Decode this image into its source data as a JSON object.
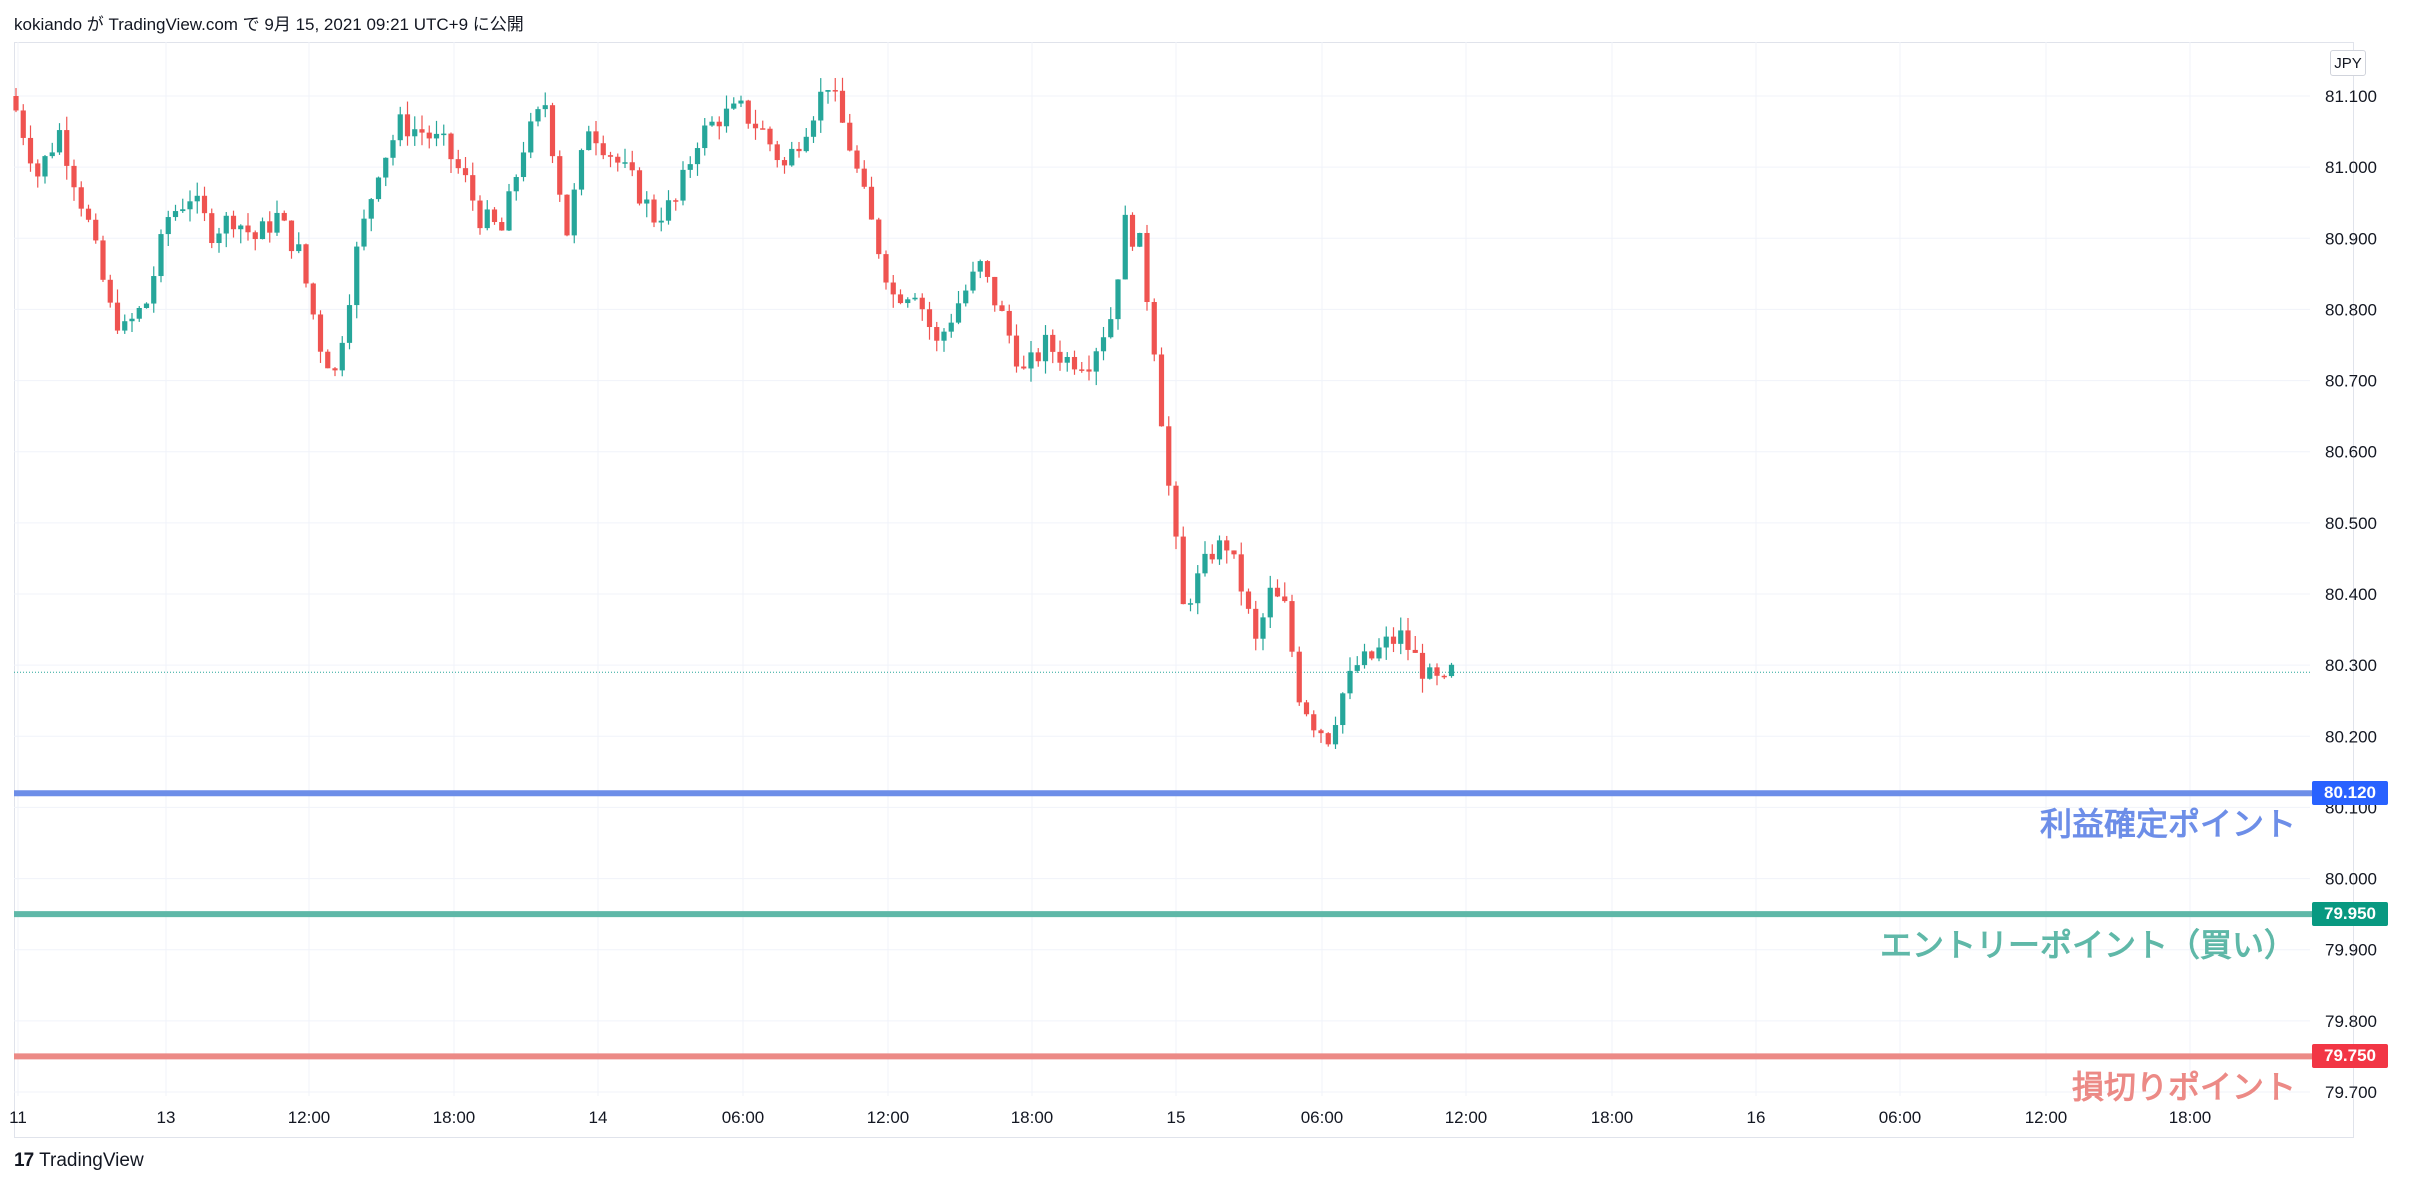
{
  "header": {
    "text": "kokiando が TradingView.com で 9月 15, 2021 09:21 UTC+9 に公開"
  },
  "currency_label": "JPY",
  "footer": {
    "brand": "TradingView",
    "logo_mark": "17"
  },
  "colors": {
    "up": "#26a69a",
    "down": "#ef5350",
    "take_profit": "#6d8ee8",
    "entry": "#5fb8a8",
    "stop_loss": "#ec8a86",
    "tag_take_profit": "#2962ff",
    "tag_entry": "#089981",
    "tag_stop_loss": "#f23645",
    "grid": "#f0f3fa",
    "axis_text": "#131722"
  },
  "chart_data": {
    "type": "candlestick",
    "symbol_currency": "JPY",
    "ylim": [
      79.7,
      81.16
    ],
    "y_ticks": [
      "81.100",
      "81.000",
      "80.900",
      "80.800",
      "80.700",
      "80.600",
      "80.500",
      "80.400",
      "80.300",
      "80.200",
      "80.100",
      "80.000",
      "79.900",
      "79.800",
      "79.700"
    ],
    "x_ticks": [
      "11",
      "13",
      "12:00",
      "18:00",
      "14",
      "06:00",
      "12:00",
      "18:00",
      "15",
      "06:00",
      "12:00",
      "18:00",
      "16",
      "06:00",
      "12:00",
      "18:00"
    ],
    "current_price": 80.29,
    "horizontal_lines": [
      {
        "name": "take_profit",
        "price": "80.120",
        "label": "利益確定ポイント"
      },
      {
        "name": "entry",
        "price": "79.950",
        "label": "エントリーポイント（買い）"
      },
      {
        "name": "stop_loss",
        "price": "79.750",
        "label": "損切りポイント"
      }
    ],
    "close_path": [
      [
        0,
        81.08
      ],
      [
        3,
        80.99
      ],
      [
        6,
        81.05
      ],
      [
        10,
        80.92
      ],
      [
        13,
        80.8
      ],
      [
        15,
        80.77
      ],
      [
        18,
        80.81
      ],
      [
        21,
        80.93
      ],
      [
        24,
        80.96
      ],
      [
        27,
        80.91
      ],
      [
        30,
        80.93
      ],
      [
        33,
        80.9
      ],
      [
        36,
        80.93
      ],
      [
        39,
        80.88
      ],
      [
        42,
        80.75
      ],
      [
        44,
        80.71
      ],
      [
        47,
        80.88
      ],
      [
        50,
        81.0
      ],
      [
        53,
        81.06
      ],
      [
        56,
        81.05
      ],
      [
        59,
        81.03
      ],
      [
        62,
        80.98
      ],
      [
        64,
        80.93
      ],
      [
        67,
        80.91
      ],
      [
        70,
        81.03
      ],
      [
        73,
        81.09
      ],
      [
        76,
        80.91
      ],
      [
        79,
        81.06
      ],
      [
        82,
        81.02
      ],
      [
        85,
        80.98
      ],
      [
        88,
        80.93
      ],
      [
        91,
        80.95
      ],
      [
        94,
        81.04
      ],
      [
        97,
        81.07
      ],
      [
        100,
        81.08
      ],
      [
        103,
        81.05
      ],
      [
        106,
        81.0
      ],
      [
        109,
        81.06
      ],
      [
        112,
        81.12
      ],
      [
        115,
        81.03
      ],
      [
        118,
        80.92
      ],
      [
        121,
        80.82
      ],
      [
        124,
        80.83
      ],
      [
        127,
        80.75
      ],
      [
        130,
        80.81
      ],
      [
        133,
        80.86
      ],
      [
        136,
        80.79
      ],
      [
        139,
        80.71
      ],
      [
        142,
        80.75
      ],
      [
        145,
        80.73
      ],
      [
        148,
        80.73
      ],
      [
        151,
        80.79
      ],
      [
        153,
        80.92
      ],
      [
        155,
        80.89
      ],
      [
        157,
        80.75
      ],
      [
        159,
        80.55
      ],
      [
        161,
        80.38
      ],
      [
        163,
        80.42
      ],
      [
        165,
        80.46
      ],
      [
        167,
        80.47
      ],
      [
        169,
        80.41
      ],
      [
        171,
        80.33
      ],
      [
        173,
        80.4
      ],
      [
        175,
        80.38
      ],
      [
        177,
        80.26
      ],
      [
        179,
        80.22
      ],
      [
        181,
        80.2
      ],
      [
        183,
        80.26
      ],
      [
        185,
        80.3
      ],
      [
        187,
        80.31
      ],
      [
        189,
        80.33
      ],
      [
        191,
        80.34
      ],
      [
        193,
        80.31
      ],
      [
        195,
        80.28
      ],
      [
        197,
        80.27
      ],
      [
        198,
        80.29
      ]
    ]
  }
}
